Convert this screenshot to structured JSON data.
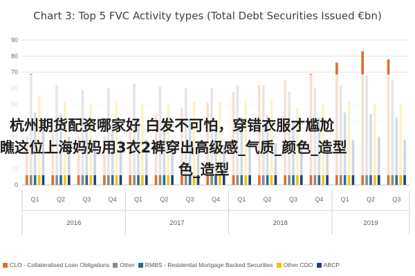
{
  "chart_data": {
    "type": "bar",
    "title": "Chart 3: Top 5 FVC Activity types (Total Debt Securities Issued €bn)",
    "categories": [
      "Q1",
      "Q2",
      "Q3",
      "Q4",
      "Q1",
      "Q2",
      "Q3",
      "Q4",
      "Q1",
      "Q2",
      "Q3",
      "Q4",
      "Q1",
      "Q2",
      "Q3"
    ],
    "year_groups": [
      {
        "label": "2016",
        "count": 4
      },
      {
        "label": "2017",
        "count": 4
      },
      {
        "label": "2018",
        "count": 4
      },
      {
        "label": "2019",
        "count": 3
      }
    ],
    "yticks": [
      "0",
      "10",
      "20",
      "30",
      "40",
      "50",
      "60",
      "70",
      "80",
      "90"
    ],
    "ylim": [
      0,
      90
    ],
    "grid": true,
    "legend_position": "bottom",
    "series": [
      {
        "name": "CLO - Collateralised Loan Obligations",
        "color": "#e36c2a",
        "values": [
          30,
          32,
          30,
          30,
          40,
          44,
          48,
          51,
          58,
          62,
          65,
          69,
          76,
          83,
          78
        ]
      },
      {
        "name": "Other",
        "color": "#8a8a8a",
        "values": [
          69,
          62,
          59,
          60,
          63,
          61,
          60,
          60,
          62,
          62,
          58,
          60,
          62,
          68,
          65
        ]
      },
      {
        "name": "RMBS - Residential Mortgage Backed Securities",
        "color": "#2e6a8e",
        "values": [
          45,
          44,
          40,
          40,
          41,
          40,
          40,
          40,
          42,
          43,
          40,
          42,
          45,
          44,
          42
        ]
      },
      {
        "name": "Other CDO",
        "color": "#f2c200",
        "values": [
          55,
          52,
          50,
          52,
          50,
          50,
          52,
          52,
          52,
          53,
          48,
          50,
          52,
          50,
          50
        ]
      },
      {
        "name": "ABCP",
        "color": "#1f3f7a",
        "values": [
          35,
          30,
          28,
          28,
          28,
          28,
          25,
          25,
          26,
          26,
          26,
          28,
          28,
          30,
          28
        ]
      }
    ]
  },
  "overlay": {
    "line1": "杭州期货配资哪家好 白发不可怕，穿错衣服才尴尬",
    "line2": "瞧这位上海妈妈用3衣2裤穿出高级感_气质_颜色_造型",
    "line3": "色_造型"
  }
}
